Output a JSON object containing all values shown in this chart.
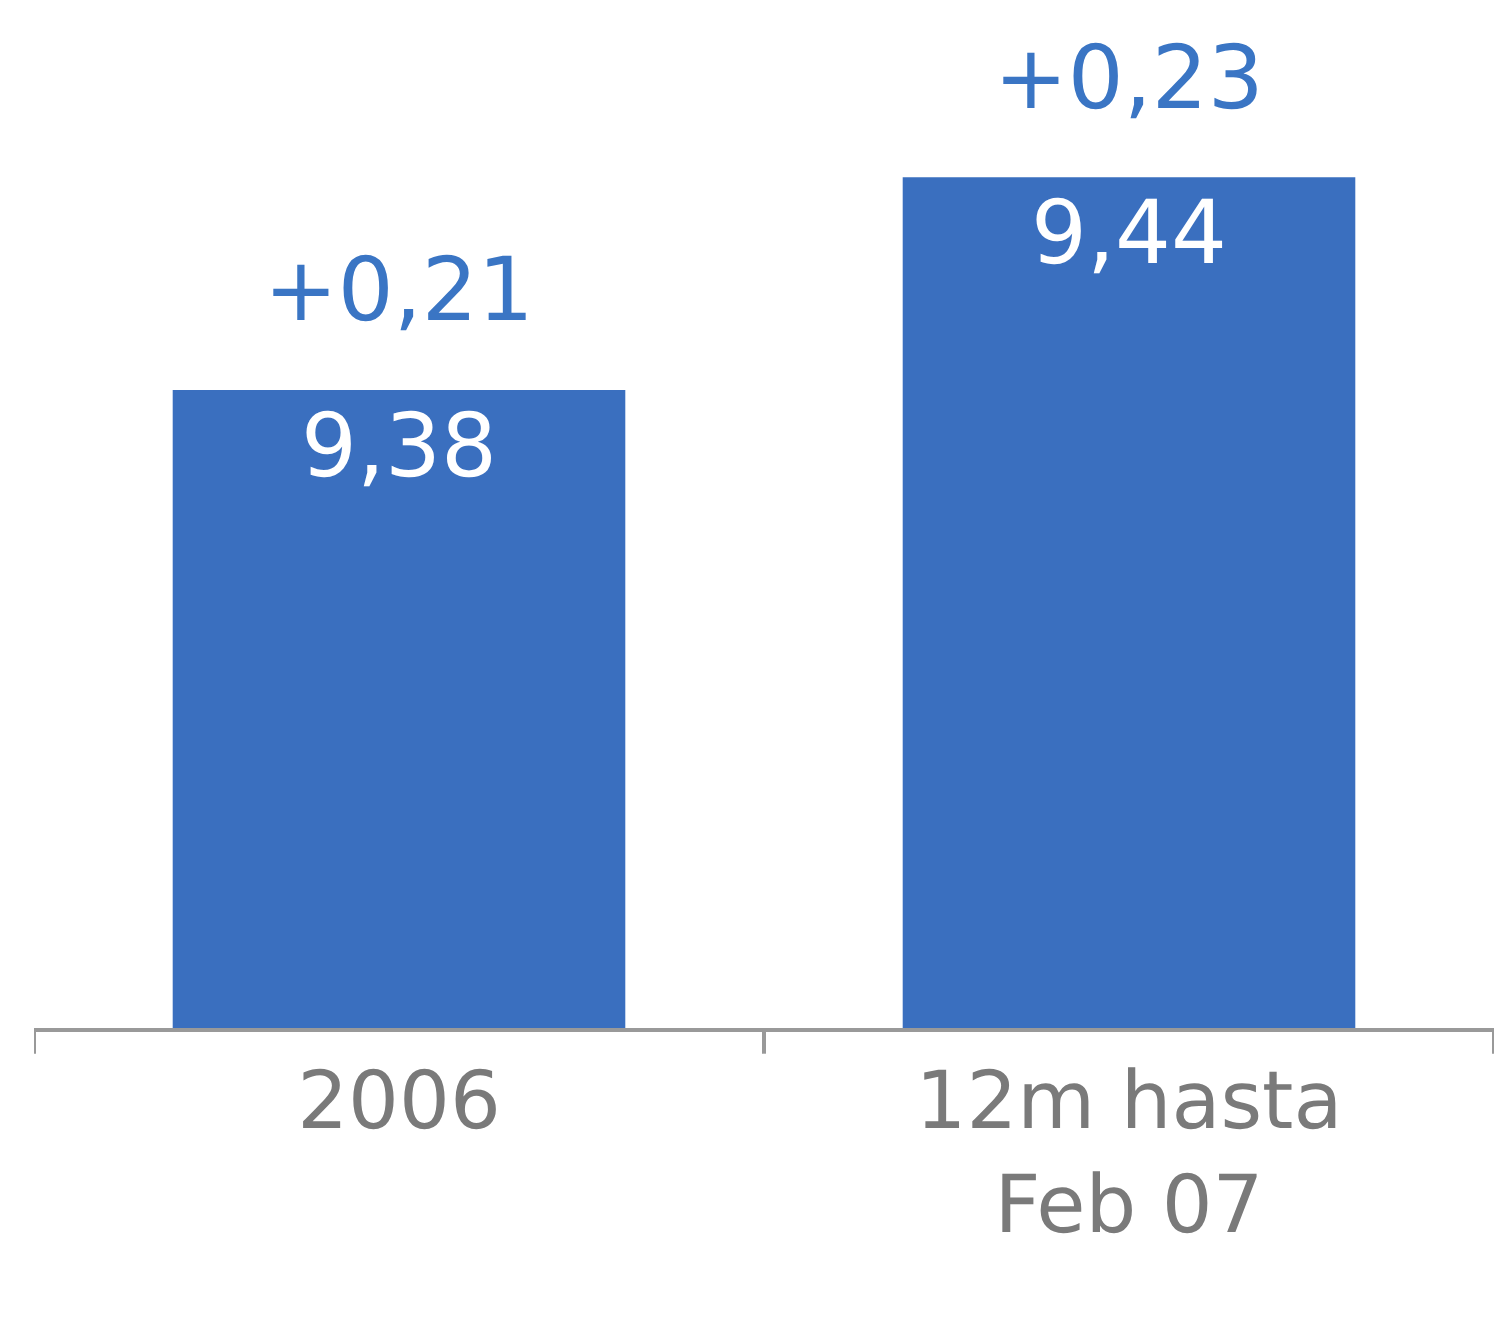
{
  "chart_data": {
    "type": "bar",
    "categories": [
      "2006",
      "12m hasta\nFeb 07"
    ],
    "values": [
      9.38,
      9.44
    ],
    "value_labels": [
      "9,38",
      "9,44"
    ],
    "color": "#3a6fbf",
    "ylim": [
      9.2,
      9.49
    ],
    "tick_labels": "x",
    "annotations": [
      {
        "text": "+0,21",
        "x": "2006",
        "y": 9.38
      },
      {
        "text": "+0,23",
        "x": "12m hasta\nFeb 07",
        "y": 9.44
      }
    ]
  }
}
